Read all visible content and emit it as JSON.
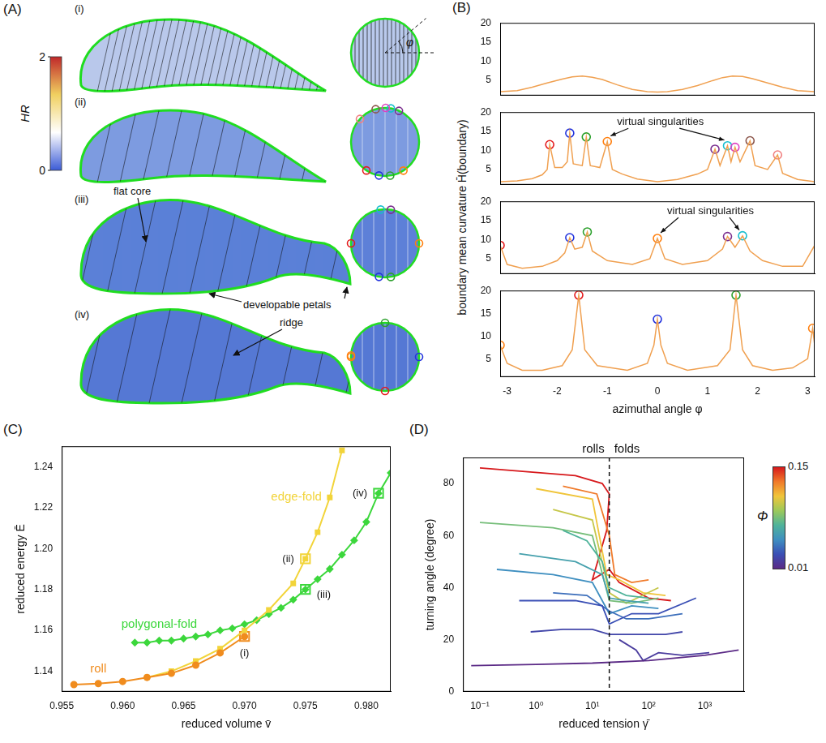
{
  "panel_A": {
    "label": "(A)",
    "colorbar": {
      "label": "HR",
      "range": [
        0,
        2
      ],
      "ticks": [
        0,
        2
      ],
      "colors": [
        "#3b5bd6",
        "#ffffff",
        "#f0d060",
        "#c0282a"
      ]
    },
    "rows": [
      "(i)",
      "(ii)",
      "(iii)",
      "(iv)"
    ],
    "annotations": [
      "flat core",
      "developable petals",
      "ridge"
    ],
    "angle_label": "φ"
  },
  "chart_data": [
    {
      "type": "line",
      "panel": "(B)",
      "xlabel": "azimuthal angle φ",
      "ylabel": "boundary mean curvature H̄(boundary)",
      "xlim": [
        -3.14,
        3.14
      ],
      "xticks": [
        -3,
        -2,
        -1,
        0,
        1,
        2,
        3
      ],
      "ylim": [
        1,
        20
      ],
      "yticks": [
        5,
        10,
        15,
        20
      ],
      "annotation": "virtual singularities",
      "subplots": [
        {
          "color": "#f0a050",
          "x": [
            -3.14,
            -2.8,
            -2.5,
            -2.2,
            -1.9,
            -1.7,
            -1.5,
            -1.3,
            -1.1,
            -0.8,
            -0.5,
            -0.2,
            0,
            0.2,
            0.5,
            0.8,
            1.1,
            1.3,
            1.5,
            1.7,
            1.9,
            2.2,
            2.5,
            2.8,
            3.14
          ],
          "values": [
            2,
            2.3,
            3.2,
            4.3,
            5.3,
            5.9,
            6.1,
            5.8,
            5.2,
            3.8,
            2.6,
            2.0,
            1.9,
            2.0,
            2.6,
            3.6,
            4.9,
            5.7,
            6.1,
            6.0,
            5.4,
            4.3,
            3.2,
            2.3,
            2
          ]
        },
        {
          "color": "#f0a050",
          "x": [
            -3.14,
            -2.8,
            -2.5,
            -2.3,
            -2.2,
            -2.15,
            -2.05,
            -1.9,
            -1.8,
            -1.75,
            -1.68,
            -1.5,
            -1.42,
            -1.34,
            -1.15,
            -1.0,
            -0.9,
            -0.7,
            -0.4,
            0,
            0.4,
            0.8,
            1.0,
            1.15,
            1.25,
            1.4,
            1.47,
            1.55,
            1.65,
            1.85,
            1.95,
            2.2,
            2.4,
            2.5,
            2.8,
            3.14
          ],
          "values": [
            1.8,
            2,
            2.6,
            3.6,
            5,
            11.5,
            5.5,
            5.5,
            7,
            14.5,
            6.5,
            6,
            13.5,
            6,
            5.5,
            12.3,
            5,
            3.8,
            2.5,
            1.8,
            2.4,
            3.8,
            5,
            10.3,
            6,
            11.2,
            7,
            10.8,
            7,
            12.5,
            6,
            5,
            8.8,
            4,
            2.4,
            1.8
          ],
          "markers": {
            "x": [
              -2.15,
              -1.75,
              -1.42,
              -1.0,
              1.15,
              1.4,
              1.55,
              1.85,
              2.4
            ],
            "values": [
              11.5,
              14.5,
              13.5,
              12.3,
              10.3,
              11.2,
              10.8,
              12.5,
              8.8
            ],
            "colors": [
              "#e41a1c",
              "#2233dd",
              "#2ca02c",
              "#ff7f0e",
              "#7b2f8f",
              "#17becf",
              "#e040c0",
              "#8c564b",
              "#f08080"
            ]
          }
        },
        {
          "color": "#f0a050",
          "x": [
            -3.14,
            -3.0,
            -2.7,
            -2.3,
            -2.0,
            -1.85,
            -1.75,
            -1.65,
            -1.5,
            -1.4,
            -1.3,
            -1.0,
            -0.5,
            -0.15,
            0,
            0.15,
            0.5,
            1.0,
            1.3,
            1.4,
            1.55,
            1.7,
            1.85,
            2.1,
            2.5,
            2.9,
            3.14
          ],
          "values": [
            8.5,
            3.5,
            2.5,
            3,
            4.5,
            6.5,
            10.5,
            7.5,
            8,
            12,
            7,
            4.5,
            3.5,
            5,
            10.3,
            5,
            3.5,
            4.5,
            7.5,
            10.8,
            8,
            11,
            7,
            4.5,
            3,
            3,
            8.5
          ],
          "markers": {
            "x": [
              -3.14,
              -1.75,
              -1.4,
              0,
              1.4,
              1.7
            ],
            "values": [
              8.5,
              10.5,
              12,
              10.3,
              10.8,
              11
            ],
            "colors": [
              "#e41a1c",
              "#2233dd",
              "#2ca02c",
              "#ff7f0e",
              "#7b2f8f",
              "#17becf"
            ]
          }
        },
        {
          "color": "#f0a050",
          "x": [
            -3.14,
            -3.0,
            -2.7,
            -2.3,
            -1.9,
            -1.7,
            -1.57,
            -1.45,
            -1.2,
            -0.6,
            -0.2,
            -0.07,
            0,
            0.07,
            0.2,
            0.6,
            1.2,
            1.45,
            1.57,
            1.7,
            1.9,
            2.3,
            2.7,
            3.0,
            3.1,
            3.14
          ],
          "values": [
            8,
            4,
            2.5,
            2.5,
            3.5,
            7,
            19,
            7,
            3.5,
            2.5,
            4,
            8,
            13.7,
            8,
            4,
            2.5,
            3.5,
            7,
            19,
            7,
            3.5,
            2.5,
            3,
            5,
            11.7,
            8
          ],
          "markers": {
            "x": [
              -3.14,
              -1.57,
              0,
              1.57,
              3.1
            ],
            "values": [
              8,
              19,
              13.7,
              19,
              11.7
            ],
            "colors": [
              "#ff7f0e",
              "#e41a1c",
              "#2233dd",
              "#2ca02c",
              "#ff7f0e"
            ]
          }
        }
      ]
    },
    {
      "type": "line",
      "panel": "(C)",
      "xlabel": "reduced volume v̄",
      "ylabel": "reduced energy Ē",
      "xlim": [
        0.955,
        0.982
      ],
      "xticks": [
        0.955,
        {
          "value": 0.96,
          "label": "0.960"
        },
        0.965,
        {
          "value": 0.97,
          "label": "0.970"
        },
        0.975,
        {
          "value": 0.98,
          "label": "0.980"
        }
      ],
      "ylim": [
        1.13,
        1.25
      ],
      "yticks": [
        1.14,
        1.16,
        1.18,
        {
          "value": 1.2,
          "label": "1.20"
        },
        1.22,
        1.24
      ],
      "series": [
        {
          "name": "roll",
          "color": "#f08c1e",
          "marker": "circle",
          "x": [
            0.956,
            0.958,
            0.96,
            0.962,
            0.964,
            0.966,
            0.968,
            0.97
          ],
          "values": [
            1.1335,
            1.134,
            1.135,
            1.137,
            1.139,
            1.143,
            1.149,
            1.157
          ]
        },
        {
          "name": "edge-fold",
          "color": "#f2d43a",
          "marker": "square",
          "x": [
            0.962,
            0.964,
            0.966,
            0.968,
            0.97,
            0.972,
            0.974,
            0.975,
            0.976,
            0.977,
            0.978
          ],
          "values": [
            1.137,
            1.14,
            1.145,
            1.151,
            1.16,
            1.17,
            1.183,
            1.195,
            1.208,
            1.225,
            1.248
          ]
        },
        {
          "name": "polygonal-fold",
          "color": "#3cd73c",
          "marker": "diamond",
          "x": [
            0.961,
            0.962,
            0.963,
            0.964,
            0.965,
            0.966,
            0.967,
            0.968,
            0.969,
            0.97,
            0.971,
            0.972,
            0.973,
            0.974,
            0.975,
            0.976,
            0.977,
            0.978,
            0.979,
            0.98,
            0.981,
            0.982
          ],
          "values": [
            1.154,
            1.154,
            1.155,
            1.155,
            1.156,
            1.157,
            1.158,
            1.16,
            1.161,
            1.163,
            1.165,
            1.168,
            1.171,
            1.175,
            1.18,
            1.185,
            1.19,
            1.197,
            1.204,
            1.213,
            1.227,
            1.237
          ]
        }
      ],
      "highlights": {
        "labels": [
          "(i)",
          "(ii)",
          "(iii)",
          "(iv)"
        ],
        "x": [
          0.97,
          0.975,
          0.975,
          0.981
        ],
        "values": [
          1.157,
          1.195,
          1.18,
          1.227
        ],
        "colors": [
          "#f08c1e",
          "#f2d43a",
          "#3cd73c",
          "#3cd73c"
        ]
      }
    },
    {
      "type": "line",
      "panel": "(D)",
      "log": "x",
      "xlabel": "reduced tension γ̄",
      "ylabel": "turning angle (degree)",
      "xlim": [
        0.05,
        5000
      ],
      "xticks": [
        {
          "value": 0.1,
          "label": "10⁻¹"
        },
        {
          "value": 1,
          "label": "10⁰"
        },
        {
          "value": 10,
          "label": "10¹"
        },
        {
          "value": 100,
          "label": "10²"
        },
        {
          "value": 1000,
          "label": "10³"
        }
      ],
      "ylim": [
        0,
        90
      ],
      "yticks": [
        0,
        20,
        40,
        60,
        80
      ],
      "divider": {
        "x": 20,
        "labels": [
          "rolls",
          "folds"
        ]
      },
      "colorbar": {
        "label": "Φ",
        "range": [
          0.01,
          0.15
        ],
        "ticks": [
          0.01,
          0.15
        ],
        "colors": [
          "#5b2a86",
          "#3a4fb5",
          "#3f8fc0",
          "#4fb39a",
          "#9cc95a",
          "#f0c53a",
          "#f07a2a",
          "#d7191c"
        ]
      },
      "series": [
        {
          "phi": 0.01,
          "x": [
            0.07,
            1,
            10,
            100,
            1000,
            4000
          ],
          "values": [
            10,
            10.5,
            11,
            12,
            14,
            16
          ]
        },
        {
          "phi": 0.02,
          "x": [
            30,
            60,
            80,
            150,
            400,
            1200
          ],
          "values": [
            20,
            16,
            12,
            15,
            14,
            15
          ]
        },
        {
          "phi": 0.025,
          "x": [
            0.8,
            3,
            10,
            20,
            50,
            200,
            400
          ],
          "values": [
            23,
            24,
            24,
            22,
            22,
            22,
            23
          ]
        },
        {
          "phi": 0.03,
          "x": [
            0.5,
            5,
            15,
            20,
            50,
            150,
            700
          ],
          "values": [
            35,
            35,
            33,
            26,
            30,
            30,
            36
          ]
        },
        {
          "phi": 0.04,
          "x": [
            2,
            8,
            20,
            40,
            100,
            400
          ],
          "values": [
            38,
            37,
            31,
            28,
            28,
            30
          ]
        },
        {
          "phi": 0.05,
          "x": [
            0.2,
            2,
            10,
            20,
            50,
            150
          ],
          "values": [
            47,
            45,
            42,
            30,
            33,
            32
          ]
        },
        {
          "phi": 0.06,
          "x": [
            0.5,
            5,
            15,
            20,
            40,
            100
          ],
          "values": [
            53,
            50,
            45,
            36,
            35,
            34
          ]
        },
        {
          "phi": 0.07,
          "x": [
            3,
            8,
            15,
            20,
            40,
            100
          ],
          "values": [
            62,
            58,
            50,
            40,
            37,
            36
          ]
        },
        {
          "phi": 0.08,
          "x": [
            0.1,
            2,
            10,
            20,
            50,
            150
          ],
          "values": [
            65,
            63,
            60,
            35,
            34,
            36
          ]
        },
        {
          "phi": 0.1,
          "x": [
            2,
            10,
            20,
            40,
            150
          ],
          "values": [
            70,
            66,
            38,
            34,
            40
          ]
        },
        {
          "phi": 0.11,
          "x": [
            1,
            10,
            18,
            30,
            80,
            200
          ],
          "values": [
            78,
            74,
            45,
            43,
            38,
            37
          ]
        },
        {
          "phi": 0.13,
          "x": [
            3,
            12,
            20,
            25,
            50,
            100
          ],
          "values": [
            79,
            76,
            60,
            45,
            42,
            43
          ]
        },
        {
          "phi": 0.15,
          "x": [
            0.1,
            5,
            15,
            20,
            18,
            10,
            20,
            30,
            100,
            250
          ],
          "values": [
            86,
            83,
            80,
            76,
            62,
            43,
            47,
            42,
            36,
            35
          ]
        }
      ]
    }
  ]
}
